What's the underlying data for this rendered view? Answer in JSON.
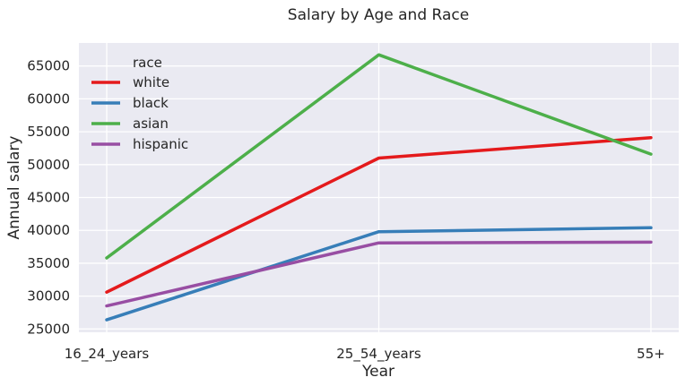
{
  "chart_data": {
    "type": "line",
    "title": "Salary by Age and Race",
    "xlabel": "Year",
    "ylabel": "Annual salary",
    "categories": [
      "16_24_years",
      "25_54_years",
      "55+"
    ],
    "ylim": [
      24500,
      68500
    ],
    "yticks": [
      25000,
      30000,
      35000,
      40000,
      45000,
      50000,
      55000,
      60000,
      65000
    ],
    "grid": true,
    "legend_title": "race",
    "legend_position": "upper-left",
    "series": [
      {
        "name": "white",
        "color": "#e41a1c",
        "values": [
          30600,
          51000,
          54100
        ]
      },
      {
        "name": "black",
        "color": "#377eb8",
        "values": [
          26400,
          39800,
          40400
        ]
      },
      {
        "name": "asian",
        "color": "#4daf4a",
        "values": [
          35800,
          66700,
          51600
        ]
      },
      {
        "name": "hispanic",
        "color": "#984ea3",
        "values": [
          28500,
          38100,
          38200
        ]
      }
    ],
    "background": "#eaeaf2",
    "gridline_color": "#ffffff"
  }
}
